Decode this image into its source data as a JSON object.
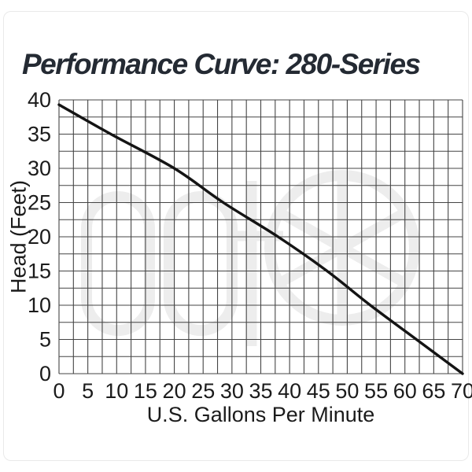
{
  "title": "Performance Curve: 280-Series",
  "chart_data": {
    "type": "line",
    "title": "Performance Curve: 280-Series",
    "xlabel": "U.S. Gallons Per Minute",
    "ylabel": "Head (Feet)",
    "xlim": [
      0,
      70
    ],
    "ylim": [
      0,
      40
    ],
    "x_ticks": [
      0,
      5,
      10,
      15,
      20,
      25,
      30,
      35,
      40,
      45,
      50,
      55,
      60,
      65,
      70
    ],
    "y_ticks": [
      0,
      5,
      10,
      15,
      20,
      25,
      30,
      35,
      40
    ],
    "minor_grid_step_x": 2.5,
    "minor_grid_step_y": 2.5,
    "grid": "on",
    "legend": "none",
    "series": [
      {
        "name": "280-Series head-flow curve",
        "points": [
          [
            0,
            39.3
          ],
          [
            9,
            35
          ],
          [
            20,
            30
          ],
          [
            28.5,
            25
          ],
          [
            38,
            20
          ],
          [
            46.5,
            15
          ],
          [
            54,
            10
          ],
          [
            62,
            5
          ],
          [
            70,
            0
          ]
        ]
      }
    ],
    "colors": {
      "curve": "#141414",
      "grid": "#454545",
      "tick_text": "#1b1b1b",
      "title_text": "#242a33",
      "watermark": "#ededed"
    }
  }
}
